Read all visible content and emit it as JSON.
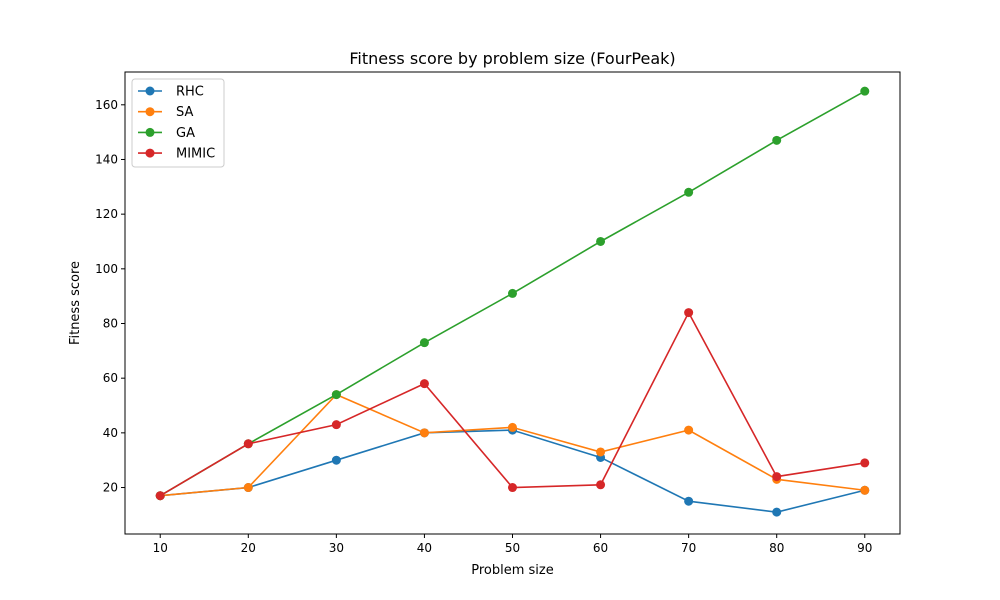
{
  "chart_data": {
    "type": "line",
    "title": "Fitness score by problem size (FourPeak)",
    "xlabel": "Problem size",
    "ylabel": "Fitness score",
    "x": [
      10,
      20,
      30,
      40,
      50,
      60,
      70,
      80,
      90
    ],
    "xlim": [
      6,
      94
    ],
    "ylim": [
      3,
      172
    ],
    "xticks": [
      10,
      20,
      30,
      40,
      50,
      60,
      70,
      80,
      90
    ],
    "yticks": [
      20,
      40,
      60,
      80,
      100,
      120,
      140,
      160
    ],
    "grid": false,
    "legend_position": "top-left",
    "marker": "circle",
    "series": [
      {
        "name": "RHC",
        "color": "#1f77b4",
        "values": [
          17,
          20,
          30,
          40,
          41,
          31,
          15,
          11,
          19
        ]
      },
      {
        "name": "SA",
        "color": "#ff7f0e",
        "values": [
          17,
          20,
          54,
          40,
          42,
          33,
          41,
          23,
          19
        ]
      },
      {
        "name": "GA",
        "color": "#2ca02c",
        "values": [
          17,
          36,
          54,
          73,
          91,
          110,
          128,
          147,
          165
        ]
      },
      {
        "name": "MIMIC",
        "color": "#d62728",
        "values": [
          17,
          36,
          43,
          58,
          20,
          21,
          84,
          24,
          29
        ]
      }
    ]
  }
}
